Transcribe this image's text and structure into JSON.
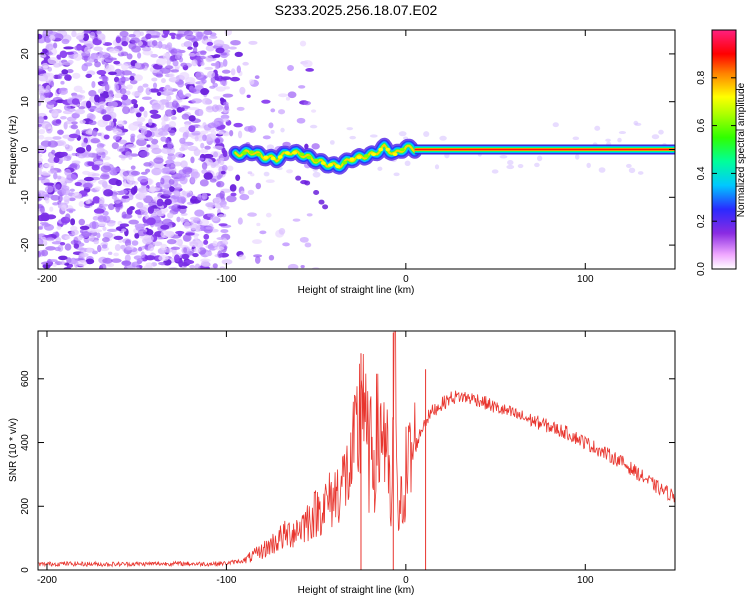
{
  "title": "S233.2025.256.18.07.E02",
  "chart_data": [
    {
      "type": "heatmap",
      "xlabel": "Height of straight line (km)",
      "ylabel": "Frequency (Hz)",
      "xlim": [
        -205,
        150
      ],
      "ylim": [
        -25,
        25
      ],
      "xticks": [
        -200,
        -100,
        0,
        100
      ],
      "yticks": [
        -20,
        -10,
        0,
        10,
        20
      ],
      "xtick_labels": [
        "-200",
        "-100",
        "0",
        "100"
      ],
      "ytick_labels": [
        "-20",
        "-10",
        "0",
        "10",
        "20"
      ],
      "noise_region_km": [
        -205,
        -85
      ],
      "signal_ridge": [
        {
          "x": -95,
          "y": -1.0
        },
        {
          "x": -85,
          "y": -0.5
        },
        {
          "x": -80,
          "y": -1.5
        },
        {
          "x": -72,
          "y": -2.0
        },
        {
          "x": -65,
          "y": -0.5
        },
        {
          "x": -58,
          "y": -1.0
        },
        {
          "x": -52,
          "y": -2.0
        },
        {
          "x": -45,
          "y": -3.0
        },
        {
          "x": -38,
          "y": -3.5
        },
        {
          "x": -30,
          "y": -2.0
        },
        {
          "x": -24,
          "y": -1.5
        },
        {
          "x": -18,
          "y": -1.0
        },
        {
          "x": -12,
          "y": 0.5
        },
        {
          "x": -6,
          "y": -1.0
        },
        {
          "x": 0,
          "y": 0.5
        },
        {
          "x": 5,
          "y": 0.0
        },
        {
          "x": 150,
          "y": 0.0
        }
      ],
      "colorbar": {
        "label": "Normalized spectral amplitude",
        "range": [
          0,
          1
        ],
        "ticks": [
          0.0,
          0.2,
          0.4,
          0.6,
          0.8
        ],
        "tick_labels": [
          "0.0",
          "0.2",
          "0.4",
          "0.6",
          "0.8"
        ]
      }
    },
    {
      "type": "line",
      "xlabel": "Height of straight line (km)",
      "ylabel": "SNR (10 * v/v)",
      "xlim": [
        -205,
        150
      ],
      "ylim": [
        0,
        750
      ],
      "xticks": [
        -200,
        -100,
        0,
        100
      ],
      "yticks": [
        0,
        200,
        400,
        600
      ],
      "xtick_labels": [
        "-200",
        "-100",
        "0",
        "100"
      ],
      "ytick_labels": [
        "0",
        "200",
        "400",
        "600"
      ],
      "color": "#e8352e",
      "series": [
        {
          "name": "SNR",
          "x": [
            -205,
            -190,
            -170,
            -150,
            -130,
            -110,
            -100,
            -90,
            -80,
            -75,
            -70,
            -60,
            -50,
            -40,
            -35,
            -30,
            -26,
            -24,
            -22,
            -20,
            -15,
            -12,
            -10,
            -8,
            -6,
            -4,
            -2,
            0,
            5,
            10,
            15,
            20,
            25,
            30,
            40,
            50,
            60,
            70,
            80,
            90,
            100,
            110,
            120,
            130,
            140,
            150
          ],
          "values": [
            18,
            20,
            18,
            19,
            20,
            19,
            21,
            30,
            60,
            80,
            100,
            130,
            180,
            230,
            280,
            320,
            450,
            650,
            380,
            350,
            420,
            460,
            300,
            150,
            740,
            100,
            260,
            300,
            380,
            460,
            500,
            520,
            540,
            545,
            535,
            510,
            490,
            470,
            450,
            430,
            400,
            370,
            340,
            300,
            260,
            230
          ]
        }
      ],
      "spikes": [
        {
          "x": -25,
          "y": 680
        },
        {
          "x": -7,
          "y": 745
        },
        {
          "x": 11,
          "y": 630
        }
      ]
    }
  ]
}
